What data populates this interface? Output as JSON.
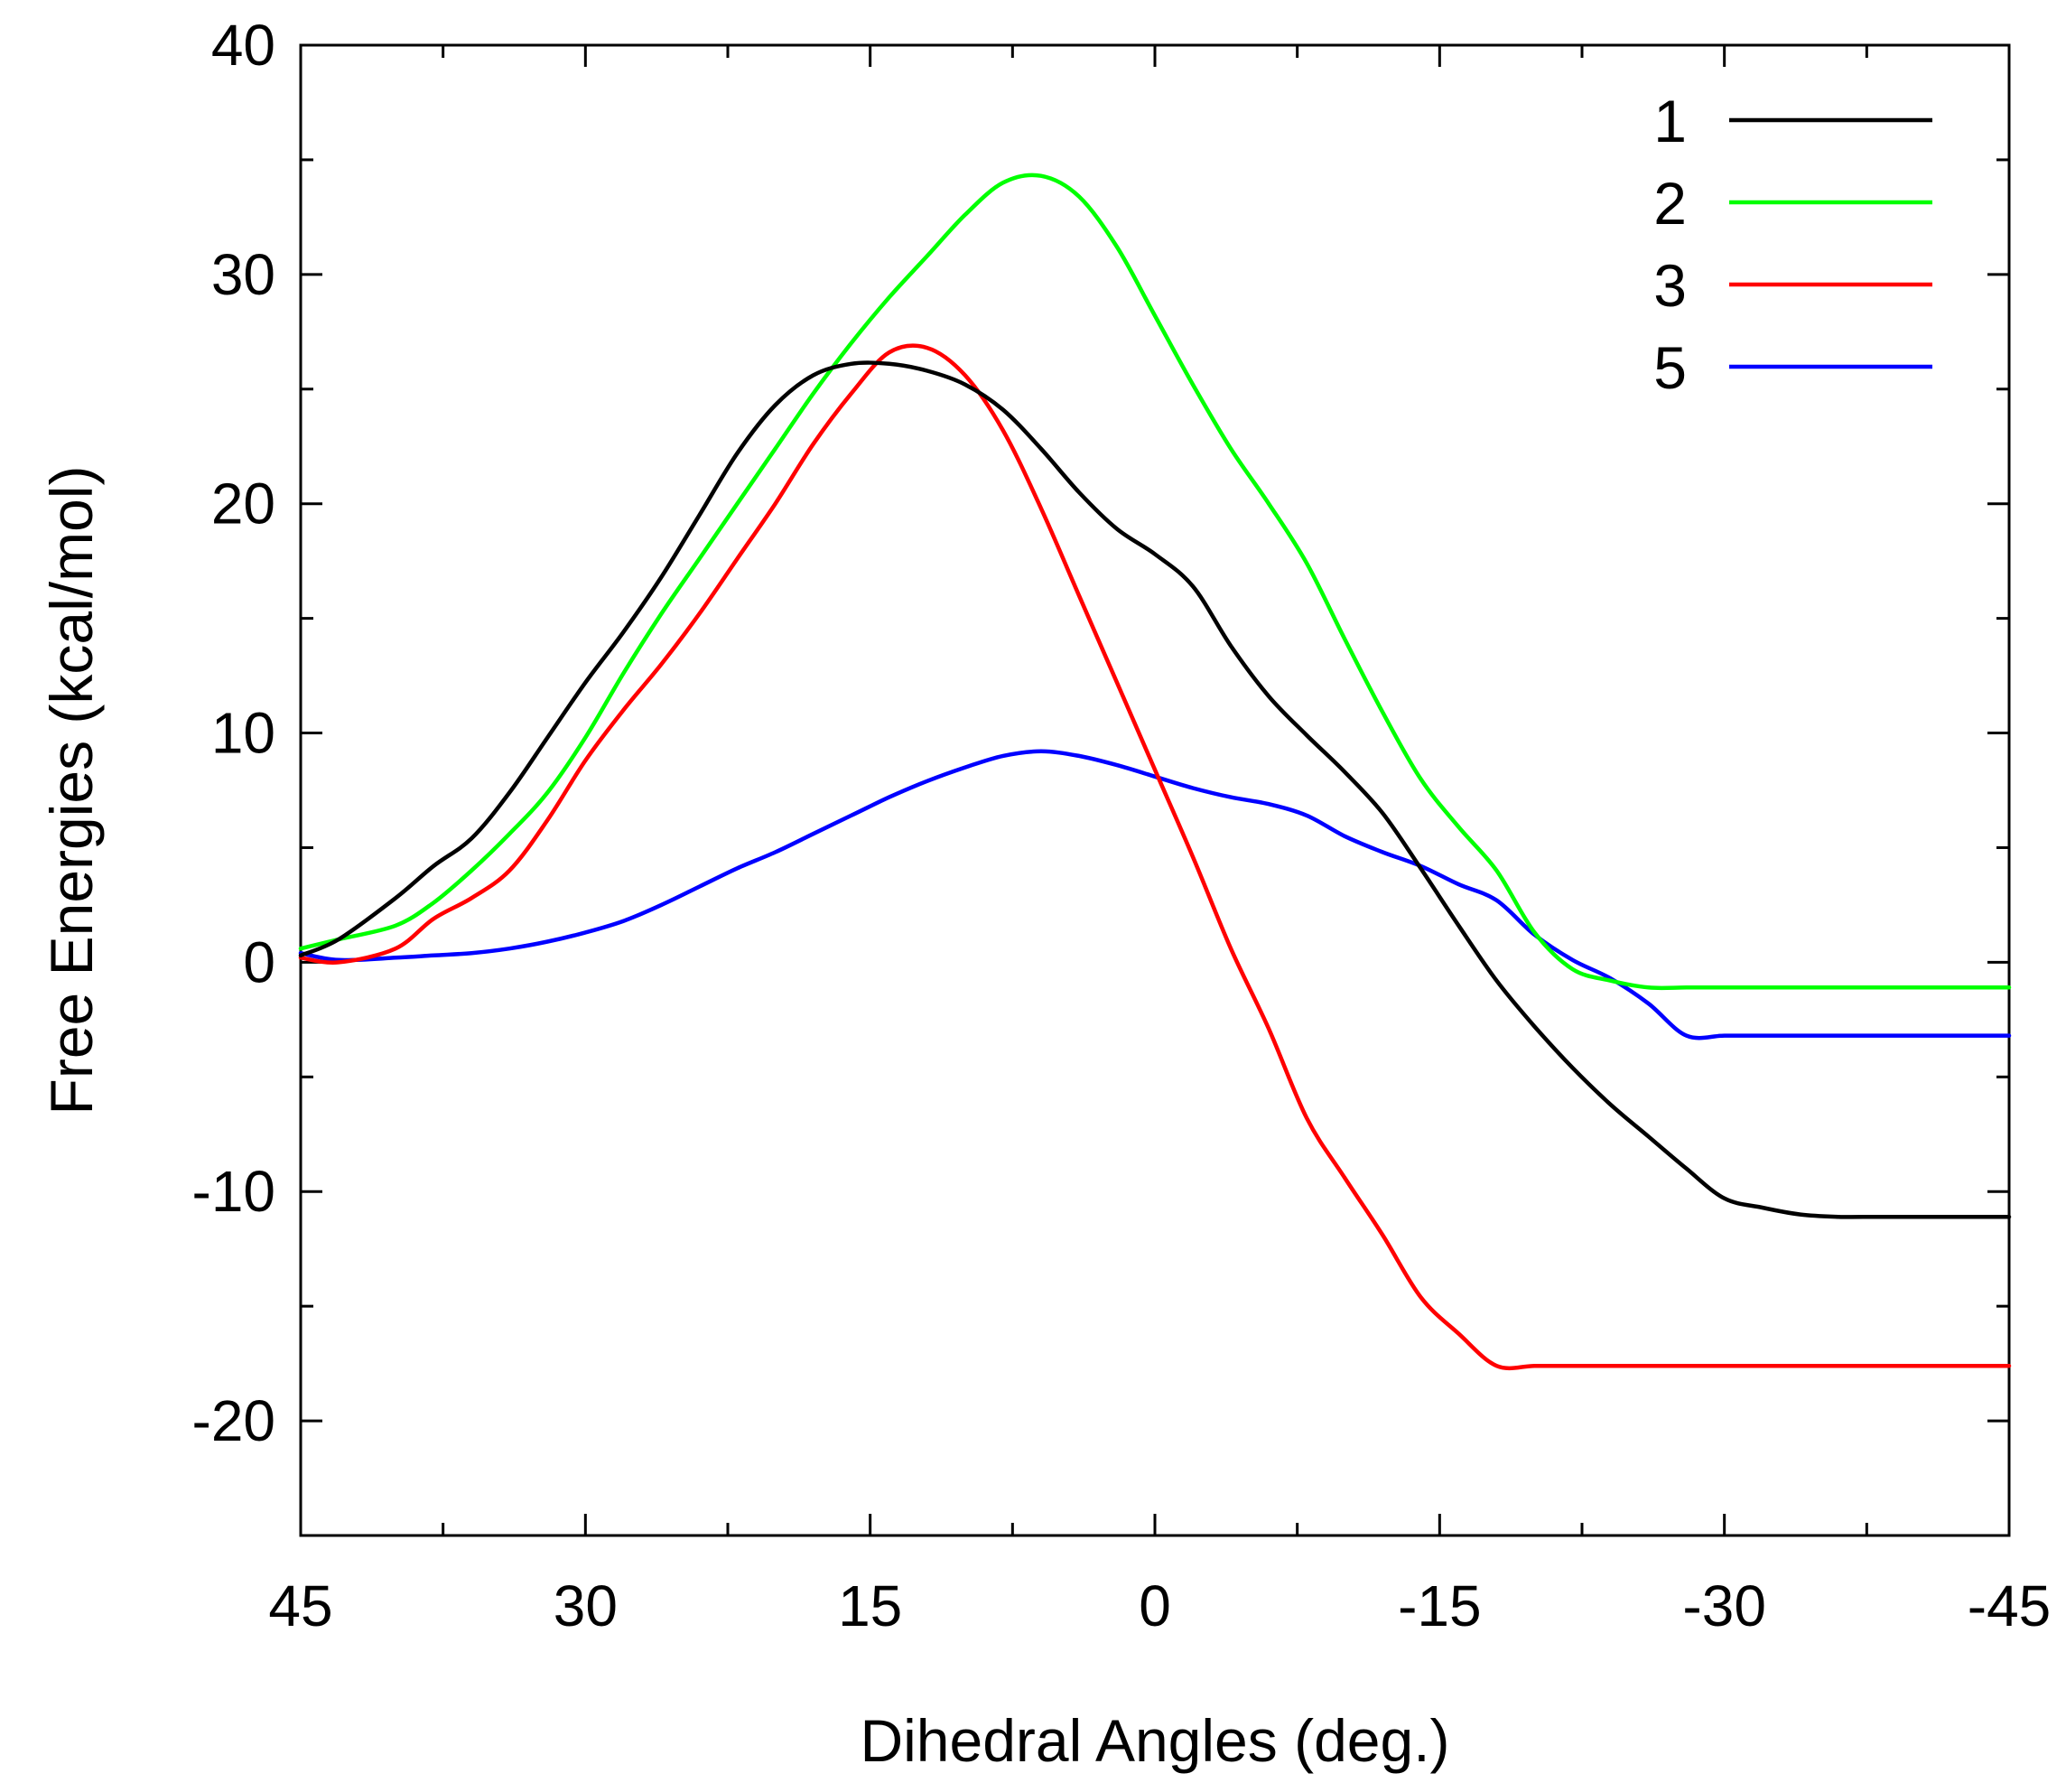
{
  "chart_data": {
    "type": "line",
    "title": "",
    "xlabel": "Dihedral Angles (deg.)",
    "ylabel": "Free Energies (kcal/mol)",
    "xlim": [
      45,
      -45
    ],
    "ylim": [
      -25,
      40
    ],
    "x_ticks": [
      45,
      30,
      15,
      0,
      -15,
      -30,
      -45
    ],
    "x_tick_labels": [
      "45",
      "30",
      "15",
      "0",
      "-15",
      "-30",
      "-45"
    ],
    "x_minor_ticks": [
      37.5,
      22.5,
      7.5,
      -7.5,
      -22.5,
      -37.5
    ],
    "y_ticks": [
      40,
      30,
      20,
      10,
      0,
      -10,
      -20
    ],
    "y_tick_labels": [
      "40",
      "30",
      "20",
      "10",
      "0",
      "-10",
      "-20"
    ],
    "y_minor_ticks": [
      35,
      25,
      15,
      5,
      -5,
      -15
    ],
    "grid": false,
    "legend_position": "top-right",
    "series": [
      {
        "name": "1",
        "color": "#000000",
        "x": [
          45,
          43,
          40,
          38,
          36,
          34,
          32,
          30,
          28,
          26,
          24,
          22,
          20,
          18,
          16,
          14,
          12,
          10,
          8,
          6,
          4,
          2,
          0,
          -2,
          -4,
          -6,
          -8,
          -10,
          -12,
          -14,
          -16,
          -18,
          -20,
          -22,
          -24,
          -26,
          -28,
          -30,
          -32,
          -34,
          -36,
          -38,
          -40,
          -42,
          -45
        ],
        "y": [
          0.3,
          1.0,
          2.8,
          4.2,
          5.4,
          7.4,
          9.8,
          12.2,
          14.4,
          16.8,
          19.5,
          22.2,
          24.3,
          25.6,
          26.1,
          26.1,
          25.8,
          25.2,
          24.1,
          22.4,
          20.5,
          18.9,
          17.8,
          16.4,
          13.8,
          11.6,
          9.9,
          8.3,
          6.5,
          4.1,
          1.6,
          -0.8,
          -2.8,
          -4.6,
          -6.2,
          -7.6,
          -9.0,
          -10.3,
          -10.7,
          -11.0,
          -11.1,
          -11.1,
          -11.1,
          -11.1,
          -11.1
        ]
      },
      {
        "name": "2",
        "color": "#00ff00",
        "x": [
          45,
          43,
          40,
          38,
          36,
          34,
          32,
          30,
          28,
          26,
          24,
          22,
          20,
          18,
          16,
          14,
          12,
          10,
          8,
          6,
          4,
          2,
          0,
          -2,
          -4,
          -6,
          -8,
          -10,
          -12,
          -14,
          -16,
          -18,
          -20,
          -22,
          -24,
          -26,
          -28,
          -30,
          -32,
          -34,
          -36,
          -38,
          -40,
          -42,
          -45
        ],
        "y": [
          0.6,
          1.0,
          1.6,
          2.6,
          4.0,
          5.6,
          7.4,
          9.8,
          12.6,
          15.2,
          17.6,
          20.0,
          22.4,
          24.8,
          27.0,
          29.0,
          30.8,
          32.6,
          34.0,
          34.3,
          33.4,
          31.2,
          28.2,
          25.2,
          22.4,
          20.0,
          17.4,
          14.1,
          10.9,
          8.0,
          5.9,
          4.0,
          1.3,
          -0.3,
          -0.8,
          -1.1,
          -1.1,
          -1.1,
          -1.1,
          -1.1,
          -1.1,
          -1.1,
          -1.1,
          -1.1,
          -1.1
        ]
      },
      {
        "name": "3",
        "color": "#ff0000",
        "x": [
          45,
          43,
          40,
          38,
          36,
          34,
          32,
          30,
          28,
          26,
          24,
          22,
          20,
          18,
          16,
          14,
          12,
          10,
          8,
          6,
          4,
          2,
          0,
          -2,
          -4,
          -6,
          -8,
          -10,
          -12,
          -14,
          -16,
          -18,
          -20,
          -22,
          -24,
          -26,
          -28,
          -30,
          -32,
          -34,
          -36,
          -38,
          -40,
          -42,
          -45
        ],
        "y": [
          0.2,
          0.0,
          0.6,
          1.9,
          2.8,
          4.0,
          6.2,
          8.8,
          11.0,
          13.0,
          15.2,
          17.6,
          20.0,
          22.6,
          24.8,
          26.6,
          26.8,
          25.6,
          23.2,
          19.8,
          16.0,
          12.2,
          8.4,
          4.6,
          0.6,
          -2.9,
          -6.8,
          -9.4,
          -11.9,
          -14.6,
          -16.2,
          -17.6,
          -17.6,
          -17.6,
          -17.6,
          -17.6,
          -17.6,
          -17.6,
          -17.6,
          -17.6,
          -17.6,
          -17.6,
          -17.6,
          -17.6,
          -17.6
        ]
      },
      {
        "name": "5",
        "color": "#0000ff",
        "x": [
          45,
          43,
          40,
          38,
          36,
          34,
          32,
          30,
          28,
          26,
          24,
          22,
          20,
          18,
          16,
          14,
          12,
          10,
          8,
          6,
          4,
          2,
          0,
          -2,
          -4,
          -6,
          -8,
          -10,
          -12,
          -14,
          -16,
          -18,
          -20,
          -22,
          -24,
          -26,
          -28,
          -30,
          -32,
          -34,
          -36,
          -38,
          -40,
          -42,
          -45
        ],
        "y": [
          0.4,
          0.1,
          0.2,
          0.3,
          0.4,
          0.6,
          0.9,
          1.3,
          1.8,
          2.5,
          3.3,
          4.1,
          4.8,
          5.6,
          6.4,
          7.2,
          7.9,
          8.5,
          9.0,
          9.2,
          9.0,
          8.6,
          8.1,
          7.6,
          7.2,
          6.9,
          6.4,
          5.5,
          4.8,
          4.2,
          3.4,
          2.7,
          1.2,
          0.1,
          -0.7,
          -1.8,
          -3.2,
          -3.2,
          -3.2,
          -3.2,
          -3.2,
          -3.2,
          -3.2,
          -3.2,
          -3.2
        ]
      }
    ]
  }
}
